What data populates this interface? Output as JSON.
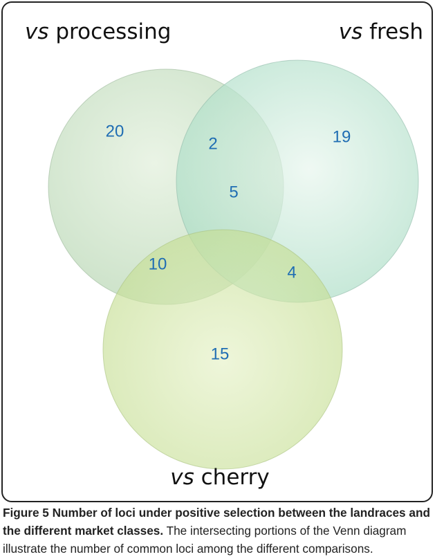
{
  "figure": {
    "sets": [
      {
        "prefix": "vs",
        "name": "processing"
      },
      {
        "prefix": "vs",
        "name": "fresh"
      },
      {
        "prefix": "vs",
        "name": "cherry"
      }
    ],
    "regions": {
      "processing_only": "20",
      "fresh_only": "19",
      "cherry_only": "15",
      "processing_fresh": "2",
      "processing_cherry": "10",
      "fresh_cherry": "4",
      "all": "5"
    },
    "caption": {
      "label": "Figure 5",
      "title": "Number of loci under positive selection between the landraces and the different market classes.",
      "text": "The intersecting portions of the Venn diagram illustrate the number of common loci among the different comparisons."
    }
  }
}
